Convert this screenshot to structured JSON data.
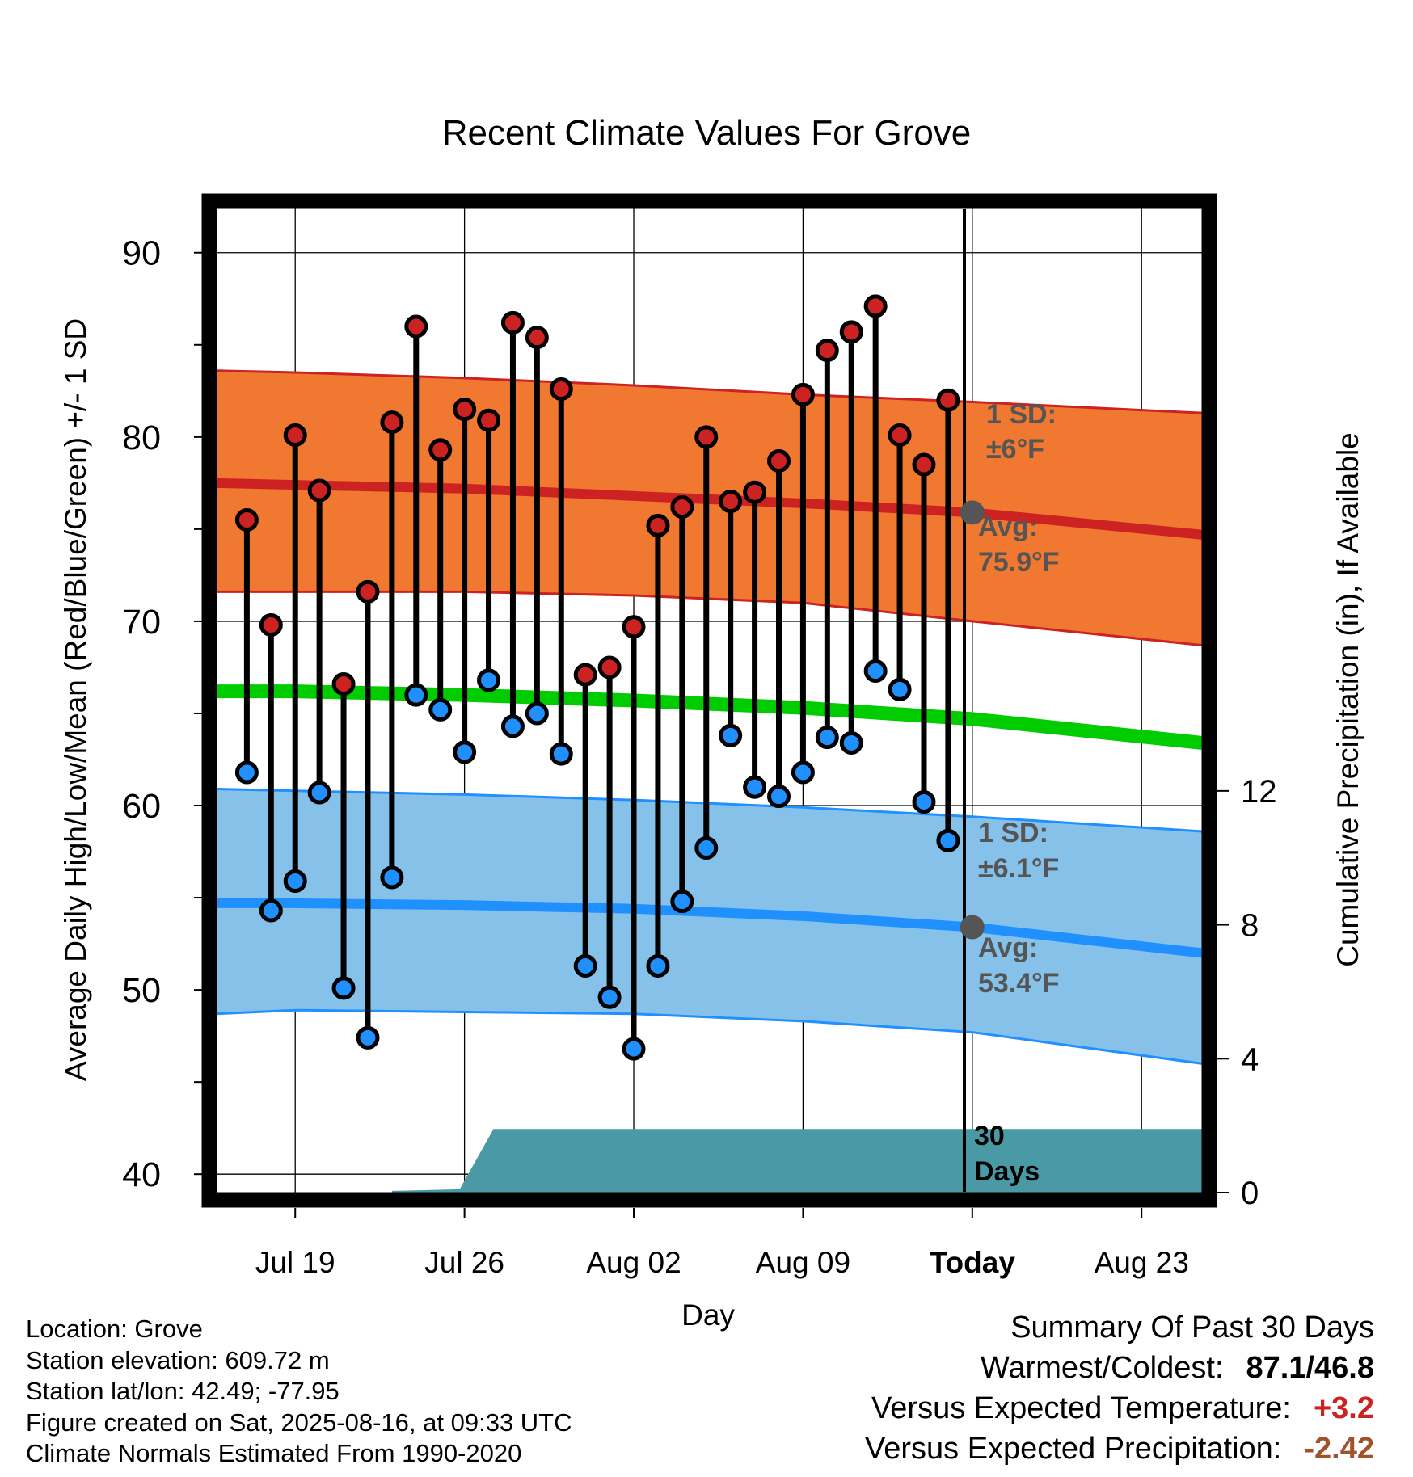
{
  "title": "Recent Climate Values For Grove",
  "xlabel": "Day",
  "ylabel_left": "Average Daily High/Low/Mean (Red/Blue/Green) +/- 1 SD",
  "ylabel_right": "Cumulative Precipitation (in), If Available",
  "colors": {
    "high": "#cc2222",
    "high_band": "#f07830",
    "low": "#2090ff",
    "low_band": "#85c1e8",
    "mean": "#00cc00",
    "precip": "#4a9aa5",
    "annotation": "#555555",
    "anomaly_temp": "#cc2222",
    "anomaly_precip": "#a0522d"
  },
  "annotations": {
    "high_sd_l1": "1 SD:",
    "high_sd_l2": "±6°F",
    "high_avg_l1": "Avg:",
    "high_avg_l2": "75.9°F",
    "low_sd_l1": "1 SD:",
    "low_sd_l2": "±6.1°F",
    "low_avg_l1": "Avg:",
    "low_avg_l2": "53.4°F",
    "days_l1": "30",
    "days_l2": "Days"
  },
  "info": {
    "location": "Location: Grove",
    "elevation": "Station elevation: 609.72 m",
    "latlon": "Station lat/lon: 42.49; -77.95",
    "created": "Figure created on Sat, 2025-08-16, at 09:33 UTC",
    "normals": "Climate Normals Estimated From 1990-2020"
  },
  "summary": {
    "heading": "Summary Of Past 30 Days",
    "warm_cold_label": "Warmest/Coldest:",
    "warm_cold_value": "87.1/46.8",
    "temp_label": "Versus Expected Temperature:",
    "temp_value": "+3.2",
    "precip_label": "Versus Expected Precipitation:",
    "precip_value": "-2.42"
  },
  "chart_data": {
    "type": "line",
    "x_ticks": [
      {
        "day": 0,
        "label": "Jul 19"
      },
      {
        "day": 7,
        "label": "Jul 26"
      },
      {
        "day": 14,
        "label": "Aug 02"
      },
      {
        "day": 21,
        "label": "Aug 09"
      },
      {
        "day": 28,
        "label": "Today"
      },
      {
        "day": 35,
        "label": "Aug 23"
      }
    ],
    "xlim": [
      -3.25,
      37.5
    ],
    "ylim": [
      39,
      92.4
    ],
    "y_ticks": [
      40,
      50,
      60,
      70,
      80,
      90
    ],
    "y2lim": [
      0,
      29.4
    ],
    "y2_ticks": [
      0,
      4,
      8,
      12
    ],
    "today_day": 28,
    "days": [
      -2,
      -1,
      0,
      1,
      2,
      3,
      4,
      5,
      6,
      7,
      8,
      9,
      10,
      11,
      12,
      13,
      14,
      15,
      16,
      17,
      18,
      19,
      20,
      21,
      22,
      23,
      24,
      25,
      26,
      27
    ],
    "highs": [
      75.5,
      69.8,
      80.1,
      77.1,
      66.6,
      71.6,
      80.8,
      86.0,
      79.3,
      81.5,
      80.9,
      86.2,
      85.4,
      82.6,
      67.1,
      67.5,
      69.7,
      75.2,
      76.2,
      80.0,
      76.5,
      77.0,
      78.7,
      82.3,
      84.7,
      85.7,
      87.1,
      80.1,
      78.5,
      82.0
    ],
    "lows": [
      61.8,
      54.3,
      55.9,
      60.7,
      50.1,
      47.4,
      56.1,
      66.0,
      65.2,
      62.9,
      66.8,
      64.3,
      65.0,
      62.8,
      51.3,
      49.6,
      46.8,
      51.3,
      54.8,
      57.7,
      63.8,
      61.0,
      60.5,
      61.8,
      63.7,
      63.4,
      67.3,
      66.3,
      60.2,
      58.1
    ],
    "normals": {
      "days": [
        -3.25,
        0,
        7,
        14,
        21,
        28,
        37.5
      ],
      "high_avg": [
        77.5,
        77.4,
        77.2,
        76.8,
        76.4,
        75.9,
        74.7
      ],
      "high_upper": [
        83.6,
        83.5,
        83.2,
        82.8,
        82.3,
        81.9,
        81.3
      ],
      "high_lower": [
        71.6,
        71.6,
        71.6,
        71.4,
        71.0,
        70.0,
        68.7
      ],
      "mean": [
        66.2,
        66.2,
        66.0,
        65.7,
        65.3,
        64.7,
        63.4
      ],
      "low_avg": [
        54.7,
        54.7,
        54.6,
        54.4,
        54.0,
        53.4,
        52.0
      ],
      "low_upper": [
        60.9,
        60.8,
        60.6,
        60.3,
        59.9,
        59.4,
        58.6
      ],
      "low_lower": [
        48.7,
        48.9,
        48.8,
        48.7,
        48.3,
        47.7,
        46.0
      ]
    },
    "precip": {
      "days": [
        4.0,
        6.8,
        8.2,
        37.5
      ],
      "values": [
        0.05,
        0.1,
        1.9,
        1.9
      ]
    }
  }
}
